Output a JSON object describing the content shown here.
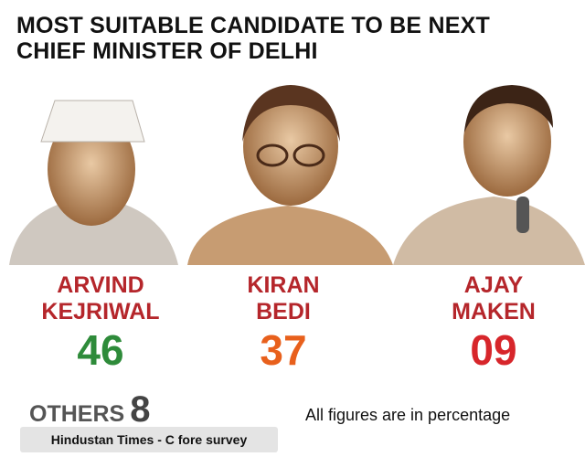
{
  "title": {
    "lines": [
      "MOST SUITABLE CANDIDATE TO BE NEXT",
      "CHIEF MINISTER OF DELHI"
    ]
  },
  "candidates": [
    {
      "name_lines": [
        "ARVIND",
        "KEJRIWAL"
      ],
      "value": "46"
    },
    {
      "name_lines": [
        "KIRAN",
        "BEDI"
      ],
      "value": "37"
    },
    {
      "name_lines": [
        "AJAY",
        "MAKEN"
      ],
      "value": "09"
    }
  ],
  "others": {
    "label": "OTHERS",
    "value": "8"
  },
  "note": "All figures are in percentage",
  "source": "Hindustan Times - C fore survey"
}
